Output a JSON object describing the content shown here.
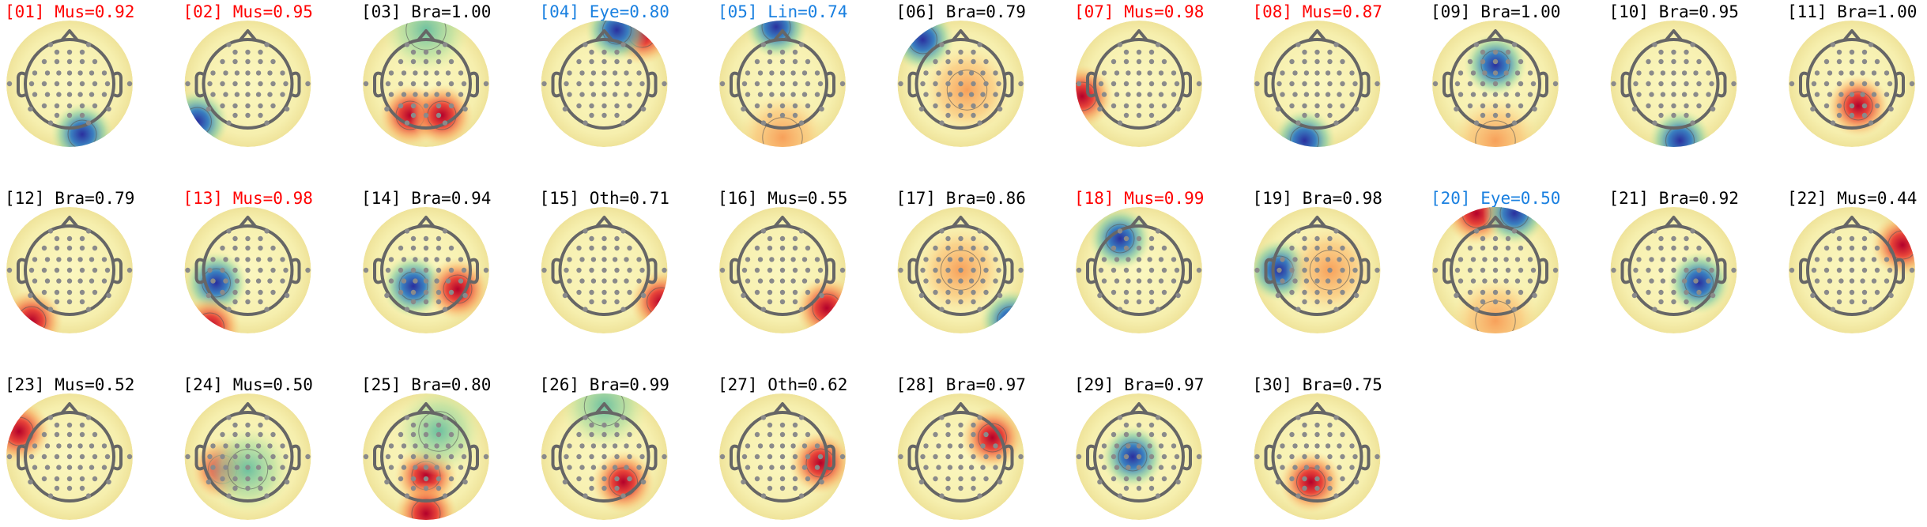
{
  "components": [
    {
      "label": "[01] Mus=0.92",
      "color": "#ff0000"
    },
    {
      "label": "[02] Mus=0.95",
      "color": "#ff0000"
    },
    {
      "label": "[03] Bra=1.00",
      "color": "#000000"
    },
    {
      "label": "[04] Eye=0.80",
      "color": "#1a80e0"
    },
    {
      "label": "[05] Lin=0.74",
      "color": "#1a80e0"
    },
    {
      "label": "[06] Bra=0.79",
      "color": "#000000"
    },
    {
      "label": "[07] Mus=0.98",
      "color": "#ff0000"
    },
    {
      "label": "[08] Mus=0.87",
      "color": "#ff0000"
    },
    {
      "label": "[09] Bra=1.00",
      "color": "#000000"
    },
    {
      "label": "[10] Bra=0.95",
      "color": "#000000"
    },
    {
      "label": "[11] Bra=1.00",
      "color": "#000000"
    },
    {
      "label": "[12] Bra=0.79",
      "color": "#000000"
    },
    {
      "label": "[13] Mus=0.98",
      "color": "#ff0000"
    },
    {
      "label": "[14] Bra=0.94",
      "color": "#000000"
    },
    {
      "label": "[15] Oth=0.71",
      "color": "#000000"
    },
    {
      "label": "[16] Mus=0.55",
      "color": "#000000"
    },
    {
      "label": "[17] Bra=0.86",
      "color": "#000000"
    },
    {
      "label": "[18] Mus=0.99",
      "color": "#ff0000"
    },
    {
      "label": "[19] Bra=0.98",
      "color": "#000000"
    },
    {
      "label": "[20] Eye=0.50",
      "color": "#1a80e0"
    },
    {
      "label": "[21] Bra=0.92",
      "color": "#000000"
    },
    {
      "label": "[22] Mus=0.44",
      "color": "#000000"
    },
    {
      "label": "[23] Mus=0.52",
      "color": "#000000"
    },
    {
      "label": "[24] Mus=0.50",
      "color": "#000000"
    },
    {
      "label": "[25] Bra=0.80",
      "color": "#000000"
    },
    {
      "label": "[26] Bra=0.99",
      "color": "#000000"
    },
    {
      "label": "[27] Oth=0.62",
      "color": "#000000"
    },
    {
      "label": "[28] Bra=0.97",
      "color": "#000000"
    },
    {
      "label": "[29] Bra=0.97",
      "color": "#000000"
    },
    {
      "label": "[30] Bra=0.75",
      "color": "#000000"
    }
  ]
}
